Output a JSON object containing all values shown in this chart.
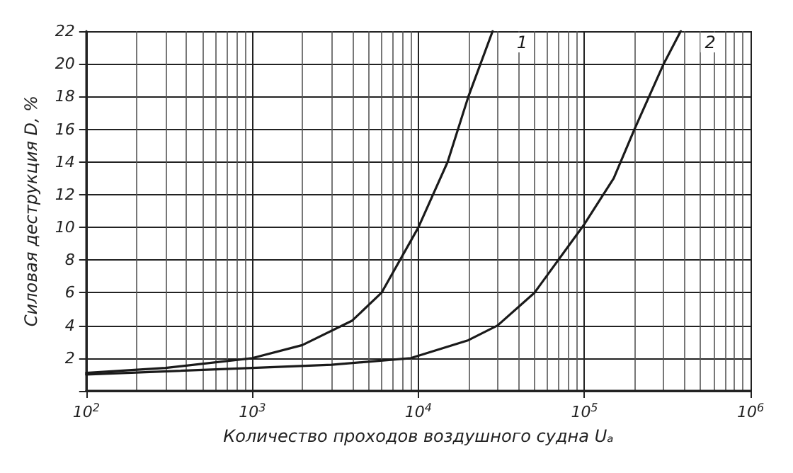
{
  "chart_data": {
    "type": "line",
    "xlabel": "Количество проходов воздушного судна Uₐ",
    "ylabel": "Силовая деструкция D, %",
    "log": "x",
    "xlim": [
      100,
      1000000
    ],
    "xticks": [
      {
        "value": 100,
        "label": "10$^{2}$"
      },
      {
        "value": 1000,
        "label": "10$^{3}$"
      },
      {
        "value": 10000,
        "label": "10$^{4}$"
      },
      {
        "value": 100000,
        "label": "10$^{5}$"
      },
      {
        "value": 1000000,
        "label": "10$^{6}$"
      }
    ],
    "ylim": [
      0,
      22
    ],
    "yticks": [
      {
        "value": 0,
        "label": null
      },
      2,
      4,
      6,
      8,
      10,
      12,
      14,
      16,
      18,
      20,
      22
    ],
    "grid": true,
    "legend": false,
    "marker": "none",
    "line_style": "solid",
    "series": [
      {
        "name": "1",
        "color": "#1a1a1a",
        "x": [
          100,
          300,
          1000,
          2000,
          4000,
          6000,
          10000,
          15000,
          20000,
          28000
        ],
        "values": [
          1.1,
          1.4,
          2.0,
          2.8,
          4.3,
          6,
          10,
          14,
          18,
          22
        ]
      },
      {
        "name": "2",
        "color": "#1a1a1a",
        "x": [
          100,
          1000,
          3000,
          9000,
          20000,
          30000,
          50000,
          100000,
          150000,
          200000,
          300000,
          380000
        ],
        "values": [
          1.0,
          1.4,
          1.6,
          2.0,
          3.1,
          4,
          6,
          10.2,
          13,
          16,
          20,
          22
        ]
      }
    ]
  }
}
